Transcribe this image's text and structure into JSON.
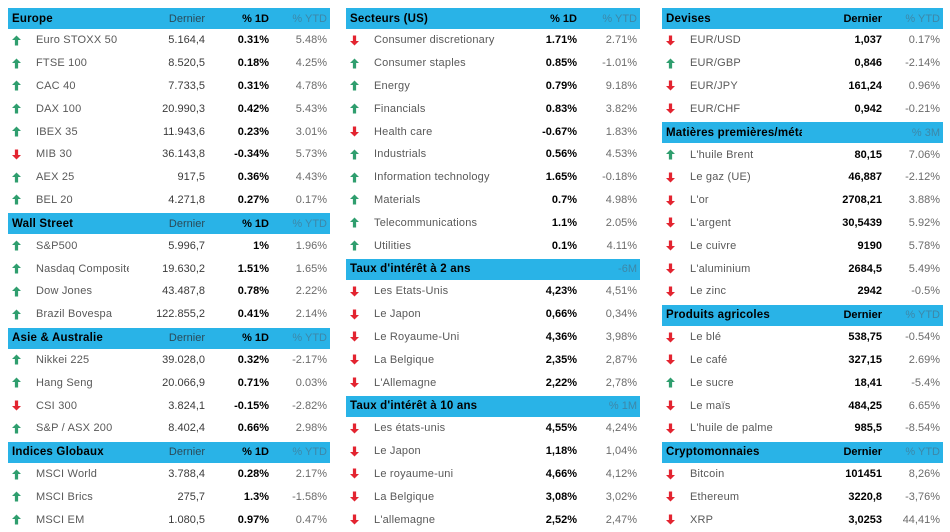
{
  "colors": {
    "header_bg": "#29b3e7",
    "up_arrow": "#2f9e6e",
    "down_arrow": "#e32430",
    "name_text": "#595959",
    "value_text": "#3a3a3a",
    "ytd_text": "#6b6b6b",
    "header_label_dark": "#2a4a58",
    "header_label_muted": "#3d87a8"
  },
  "columns": [
    {
      "name": "left",
      "tables": [
        {
          "title": "Europe",
          "layout": "L",
          "labels": [
            {
              "text": "Dernier",
              "style": "dark"
            },
            {
              "text": "% 1D",
              "style": "bold"
            },
            {
              "text": "% YTD",
              "style": "muted"
            }
          ],
          "rows": [
            [
              "up",
              "Euro STOXX 50",
              "5.164,4",
              "0.31%",
              "5.48%"
            ],
            [
              "up",
              "FTSE 100",
              "8.520,5",
              "0.18%",
              "4.25%"
            ],
            [
              "up",
              "CAC 40",
              "7.733,5",
              "0.31%",
              "4.78%"
            ],
            [
              "up",
              "DAX 100",
              "20.990,3",
              "0.42%",
              "5.43%"
            ],
            [
              "up",
              "IBEX 35",
              "11.943,6",
              "0.23%",
              "3.01%"
            ],
            [
              "down",
              "MIB 30",
              "36.143,8",
              "-0.34%",
              "5.73%"
            ],
            [
              "up",
              "AEX 25",
              "917,5",
              "0.36%",
              "4.43%"
            ],
            [
              "up",
              "BEL 20",
              "4.271,8",
              "0.27%",
              "0.17%"
            ]
          ]
        },
        {
          "title": "Wall Street",
          "layout": "L",
          "labels": [
            {
              "text": "Dernier",
              "style": "dark"
            },
            {
              "text": "% 1D",
              "style": "bold"
            },
            {
              "text": "% YTD",
              "style": "muted"
            }
          ],
          "rows": [
            [
              "up",
              "S&P500",
              "5.996,7",
              "1%",
              "1.96%"
            ],
            [
              "up",
              "Nasdaq Composite",
              "19.630,2",
              "1.51%",
              "1.65%"
            ],
            [
              "up",
              "Dow Jones",
              "43.487,8",
              "0.78%",
              "2.22%"
            ],
            [
              "up",
              "Brazil Bovespa",
              "122.855,2",
              "0.41%",
              "2.14%"
            ]
          ]
        },
        {
          "title": "Asie & Australie",
          "layout": "L",
          "labels": [
            {
              "text": "Dernier",
              "style": "dark"
            },
            {
              "text": "% 1D",
              "style": "bold"
            },
            {
              "text": "% YTD",
              "style": "muted"
            }
          ],
          "rows": [
            [
              "up",
              "Nikkei 225",
              "39.028,0",
              "0.32%",
              "-2.17%"
            ],
            [
              "up",
              "Hang Seng",
              "20.066,9",
              "0.71%",
              "0.03%"
            ],
            [
              "down",
              "CSI 300",
              "3.824,1",
              "-0.15%",
              "-2.82%"
            ],
            [
              "up",
              "S&P / ASX 200",
              "8.402,4",
              "0.66%",
              "2.98%"
            ]
          ]
        },
        {
          "title": "Indices Globaux",
          "layout": "L",
          "labels": [
            {
              "text": "Dernier",
              "style": "dark"
            },
            {
              "text": "% 1D",
              "style": "bold"
            },
            {
              "text": "% YTD",
              "style": "muted"
            }
          ],
          "rows": [
            [
              "up",
              "MSCI World",
              "3.788,4",
              "0.28%",
              "2.17%"
            ],
            [
              "up",
              "MSCI Brics",
              "275,7",
              "1.3%",
              "-1.58%"
            ],
            [
              "up",
              "MSCI EM",
              "1.080,5",
              "0.97%",
              "0.47%"
            ]
          ]
        }
      ]
    },
    {
      "name": "middle",
      "tables": [
        {
          "title": "Secteurs (US)",
          "layout": "M",
          "labels": [
            {
              "text": "% 1D",
              "style": "bold"
            },
            {
              "text": "% YTD",
              "style": "muted"
            }
          ],
          "rows": [
            [
              "down",
              "Consumer discretionary",
              "1.71%",
              "2.71%"
            ],
            [
              "up",
              "Consumer staples",
              "0.85%",
              "-1.01%"
            ],
            [
              "up",
              "Energy",
              "0.79%",
              "9.18%"
            ],
            [
              "up",
              "Financials",
              "0.83%",
              "3.82%"
            ],
            [
              "down",
              "Health care",
              "-0.67%",
              "1.83%"
            ],
            [
              "up",
              "Industrials",
              "0.56%",
              "4.53%"
            ],
            [
              "up",
              "Information technology",
              "1.65%",
              "-0.18%"
            ],
            [
              "up",
              "Materials",
              "0.7%",
              "4.98%"
            ],
            [
              "up",
              "Telecommunications",
              "1.1%",
              "2.05%"
            ],
            [
              "up",
              "Utilities",
              "0.1%",
              "4.11%"
            ]
          ]
        },
        {
          "title": "Taux d'intérêt à 2 ans",
          "layout": "M",
          "labels": [
            {
              "text": "",
              "style": "dark"
            },
            {
              "text": "-6M",
              "style": "muted"
            }
          ],
          "rows": [
            [
              "down",
              "Les Etats-Unis",
              "4,23%",
              "4,51%"
            ],
            [
              "down",
              "Le Japon",
              "0,66%",
              "0,34%"
            ],
            [
              "down",
              "Le Royaume-Uni",
              "4,36%",
              "3,98%"
            ],
            [
              "down",
              "La Belgique",
              "2,35%",
              "2,87%"
            ],
            [
              "down",
              "L'Allemagne",
              "2,22%",
              "2,78%"
            ]
          ]
        },
        {
          "title": "Taux d'intérêt à 10 ans",
          "layout": "M",
          "labels": [
            {
              "text": "",
              "style": "dark"
            },
            {
              "text": "% 1M",
              "style": "muted"
            }
          ],
          "rows": [
            [
              "down",
              "Les états-unis",
              "4,55%",
              "4,24%"
            ],
            [
              "down",
              "Le Japon",
              "1,18%",
              "1,04%"
            ],
            [
              "down",
              "Le royaume-uni",
              "4,66%",
              "4,12%"
            ],
            [
              "down",
              "La Belgique",
              "3,08%",
              "3,02%"
            ],
            [
              "down",
              "L'allemagne",
              "2,52%",
              "2,47%"
            ]
          ]
        }
      ]
    },
    {
      "name": "right",
      "tables": [
        {
          "title": "Devises",
          "layout": "R",
          "labels": [
            {
              "text": "Dernier",
              "style": "bold"
            },
            {
              "text": "% YTD",
              "style": "muted"
            }
          ],
          "rows": [
            [
              "down",
              "EUR/USD",
              "1,037",
              "0.17%"
            ],
            [
              "up",
              "EUR/GBP",
              "0,846",
              "-2.14%"
            ],
            [
              "down",
              "EUR/JPY",
              "161,24",
              "0.96%"
            ],
            [
              "down",
              "EUR/CHF",
              "0,942",
              "-0.21%"
            ]
          ]
        },
        {
          "title": "Matières premières/métaux",
          "layout": "R",
          "labels": [
            {
              "text": "",
              "style": "dark"
            },
            {
              "text": "% 3M",
              "style": "muted"
            }
          ],
          "rows": [
            [
              "up",
              "L'huile Brent",
              "80,15",
              "7.06%"
            ],
            [
              "down",
              "Le gaz (UE)",
              "46,887",
              "-2.12%"
            ],
            [
              "down",
              "L'or",
              "2708,21",
              "3.88%"
            ],
            [
              "down",
              "L'argent",
              "30,5439",
              "5.92%"
            ],
            [
              "down",
              "Le cuivre",
              "9190",
              "5.78%"
            ],
            [
              "down",
              "L'aluminium",
              "2684,5",
              "5.49%"
            ],
            [
              "down",
              "Le zinc",
              "2942",
              "-0.5%"
            ]
          ]
        },
        {
          "title": "Produits agricoles",
          "layout": "R",
          "labels": [
            {
              "text": "Dernier",
              "style": "bold"
            },
            {
              "text": "% YTD",
              "style": "muted"
            }
          ],
          "rows": [
            [
              "down",
              "Le blé",
              "538,75",
              "-0.54%"
            ],
            [
              "down",
              "Le café",
              "327,15",
              "2.69%"
            ],
            [
              "up",
              "Le sucre",
              "18,41",
              "-5.4%"
            ],
            [
              "down",
              "Le maïs",
              "484,25",
              "6.65%"
            ],
            [
              "down",
              "L'huile de palme",
              "985,5",
              "-8.54%"
            ]
          ]
        },
        {
          "title": "Cryptomonnaies",
          "layout": "R",
          "labels": [
            {
              "text": "Dernier",
              "style": "bold"
            },
            {
              "text": "% YTD",
              "style": "muted"
            }
          ],
          "rows": [
            [
              "down",
              "Bitcoin",
              "101451",
              "8,26%"
            ],
            [
              "down",
              "Ethereum",
              "3220,8",
              "-3,76%"
            ],
            [
              "down",
              "XRP",
              "3,0253",
              "44,41%"
            ]
          ]
        }
      ]
    }
  ]
}
